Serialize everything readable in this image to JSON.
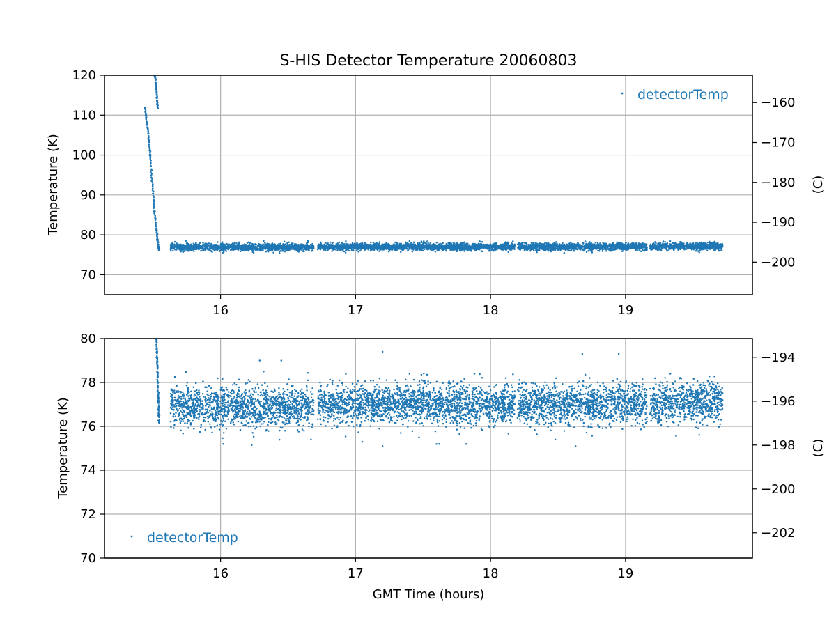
{
  "chart_data": [
    {
      "type": "scatter",
      "title": "S-HIS Detector Temperature 20060803",
      "xlabel": "",
      "ylabel": "Temperature (K)",
      "ylabel_right": "(C)",
      "xlim": [
        15.14,
        19.94
      ],
      "ylim": [
        65,
        120
      ],
      "ylim_right": [
        -208.15,
        -153.15
      ],
      "x_ticks": [
        16,
        17,
        18,
        19
      ],
      "y_ticks": [
        70,
        80,
        90,
        100,
        110,
        120
      ],
      "y_ticks_right": [
        -200,
        -190,
        -180,
        -170,
        -160
      ],
      "grid": true,
      "legend_position": "top-right",
      "color": "#1f77b4",
      "series": [
        {
          "name": "detectorTemp",
          "segments": [
            {
              "kind": "cooldown",
              "points": [
                [
                  15.44,
                  112.0
                ],
                [
                  15.46,
                  106.5
                ],
                [
                  15.48,
                  99.5
                ],
                [
                  15.5,
                  90.5
                ],
                [
                  15.52,
                  82.5
                ],
                [
                  15.54,
                  77.0
                ],
                [
                  15.545,
                  76.2
                ]
              ]
            },
            {
              "kind": "cooldown",
              "points": [
                [
                  15.515,
                  120.0
                ],
                [
                  15.525,
                  116.0
                ],
                [
                  15.535,
                  111.5
                ]
              ]
            },
            {
              "kind": "noisy-band",
              "x_range": [
                15.63,
                16.69
              ],
              "mean": 76.9,
              "std": 0.45
            },
            {
              "kind": "noisy-band",
              "x_range": [
                16.72,
                18.18
              ],
              "mean": 77.0,
              "std": 0.45
            },
            {
              "kind": "noisy-band",
              "x_range": [
                18.2,
                19.16
              ],
              "mean": 77.0,
              "std": 0.45
            },
            {
              "kind": "noisy-band",
              "x_range": [
                19.18,
                19.72
              ],
              "mean": 77.1,
              "std": 0.45
            }
          ]
        }
      ]
    },
    {
      "type": "scatter",
      "title": "",
      "xlabel": "GMT Time (hours)",
      "ylabel": "Temperature (K)",
      "ylabel_right": "(C)",
      "xlim": [
        15.14,
        19.94
      ],
      "ylim": [
        70,
        80
      ],
      "ylim_right": [
        -203.15,
        -193.15
      ],
      "x_ticks": [
        16,
        17,
        18,
        19
      ],
      "y_ticks": [
        70,
        72,
        74,
        76,
        78,
        80
      ],
      "y_ticks_right": [
        -202,
        -200,
        -198,
        -196,
        -194
      ],
      "grid": true,
      "legend_position": "bottom-left",
      "color": "#1f77b4",
      "series": [
        {
          "name": "detectorTemp",
          "segments": [
            {
              "kind": "cooldown",
              "points": [
                [
                  15.525,
                  80.0
                ],
                [
                  15.53,
                  79.0
                ],
                [
                  15.535,
                  78.0
                ],
                [
                  15.54,
                  77.0
                ],
                [
                  15.545,
                  76.2
                ]
              ]
            },
            {
              "kind": "noisy-band",
              "x_range": [
                15.63,
                16.69
              ],
              "mean": 76.9,
              "std": 0.45
            },
            {
              "kind": "noisy-band",
              "x_range": [
                16.72,
                18.18
              ],
              "mean": 77.0,
              "std": 0.45
            },
            {
              "kind": "noisy-band",
              "x_range": [
                18.2,
                19.16
              ],
              "mean": 77.0,
              "std": 0.45
            },
            {
              "kind": "noisy-band",
              "x_range": [
                19.18,
                19.72
              ],
              "mean": 77.1,
              "std": 0.45
            }
          ],
          "outliers": [
            [
              16.02,
              75.2
            ],
            [
              16.23,
              75.15
            ],
            [
              16.67,
              75.4
            ],
            [
              17.05,
              75.3
            ],
            [
              17.2,
              79.4
            ],
            [
              17.2,
              75.1
            ],
            [
              17.47,
              75.5
            ],
            [
              17.6,
              75.2
            ],
            [
              17.62,
              75.2
            ],
            [
              17.82,
              75.2
            ],
            [
              18.48,
              75.4
            ],
            [
              18.63,
              75.1
            ],
            [
              18.68,
              79.3
            ],
            [
              18.95,
              79.3
            ],
            [
              16.45,
              79.0
            ],
            [
              16.29,
              79.0
            ]
          ]
        }
      ]
    }
  ]
}
